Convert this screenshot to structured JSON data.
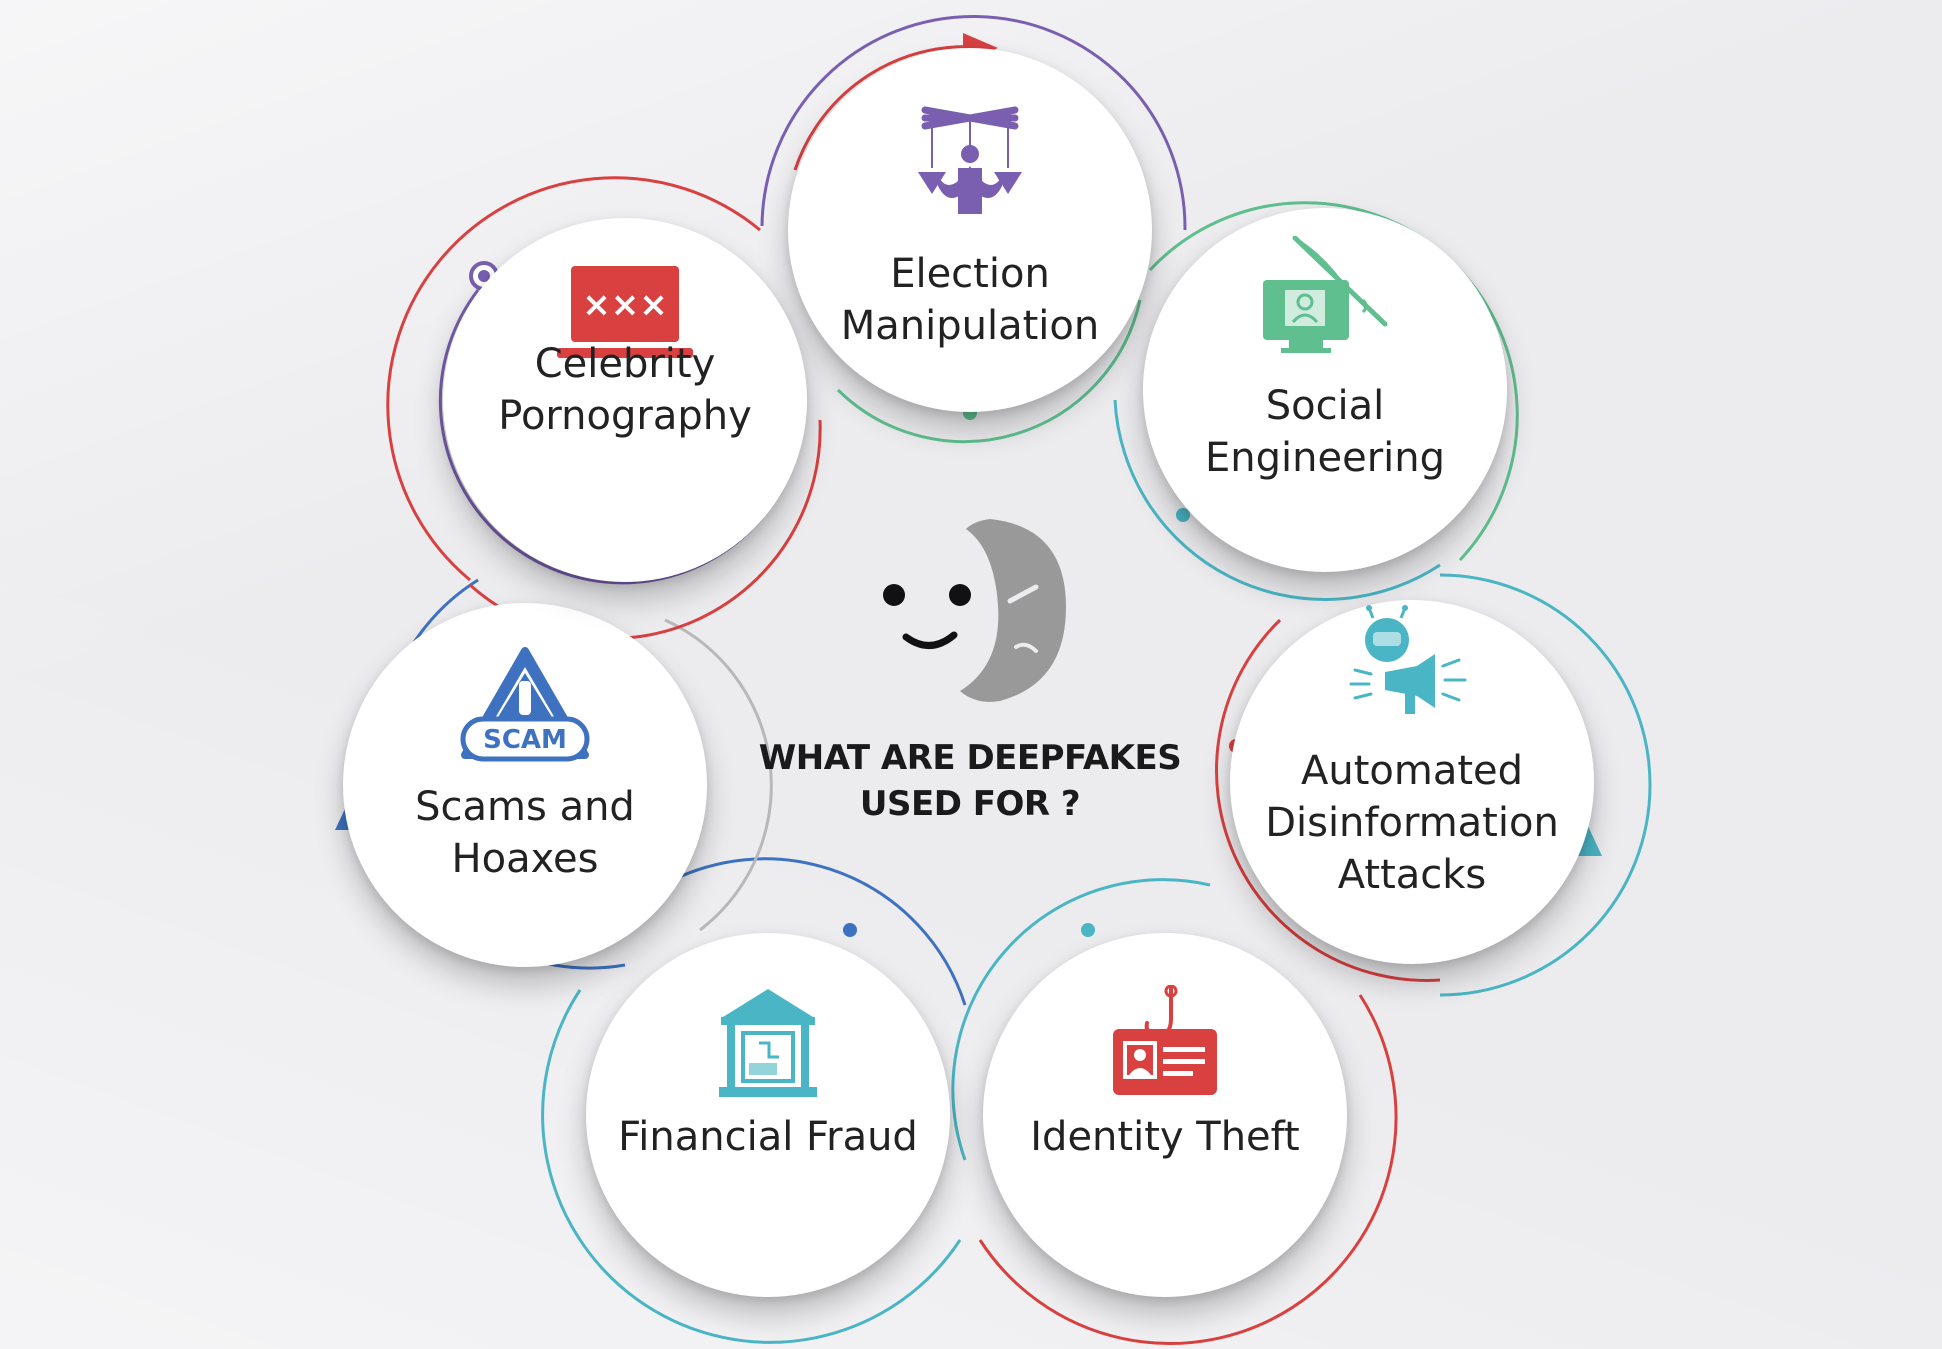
{
  "center": {
    "title_line1": "WHAT ARE DEEPFAKES",
    "title_line2": "USED FOR ?"
  },
  "nodes": [
    {
      "id": "election",
      "line1": "Election",
      "line2": "Manipulation",
      "icon": "puppet-icon",
      "color": "#7a5fb0"
    },
    {
      "id": "social",
      "line1": "Social",
      "line2": "Engineering",
      "icon": "phishing-computer-icon",
      "color": "#5fbf8f"
    },
    {
      "id": "disinfo",
      "line1": "Automated",
      "line2": "Disinformation",
      "line3": "Attacks",
      "icon": "bot-megaphone-icon",
      "color": "#4ab5c4"
    },
    {
      "id": "identity",
      "line1": "Identity Theft",
      "icon": "id-card-hook-icon",
      "color": "#d94040"
    },
    {
      "id": "fraud",
      "line1": "Financial Fraud",
      "icon": "bank-icon",
      "color": "#4ab5c4"
    },
    {
      "id": "scams",
      "line1": "Scams and",
      "line2": "Hoaxes",
      "icon": "scam-warning-icon",
      "icon_text": "SCAM",
      "color": "#3e72c0"
    },
    {
      "id": "celebrity",
      "line1": "Celebrity",
      "line2": "Pornography",
      "icon": "laptop-xxx-icon",
      "icon_text": "×××",
      "color": "#d94040"
    }
  ],
  "colors": {
    "purple": "#7a5fb0",
    "green": "#5fbf8f",
    "teal": "#4ab5c4",
    "red": "#d94040",
    "blue": "#3e72c0",
    "gray": "#b8b8b8"
  }
}
